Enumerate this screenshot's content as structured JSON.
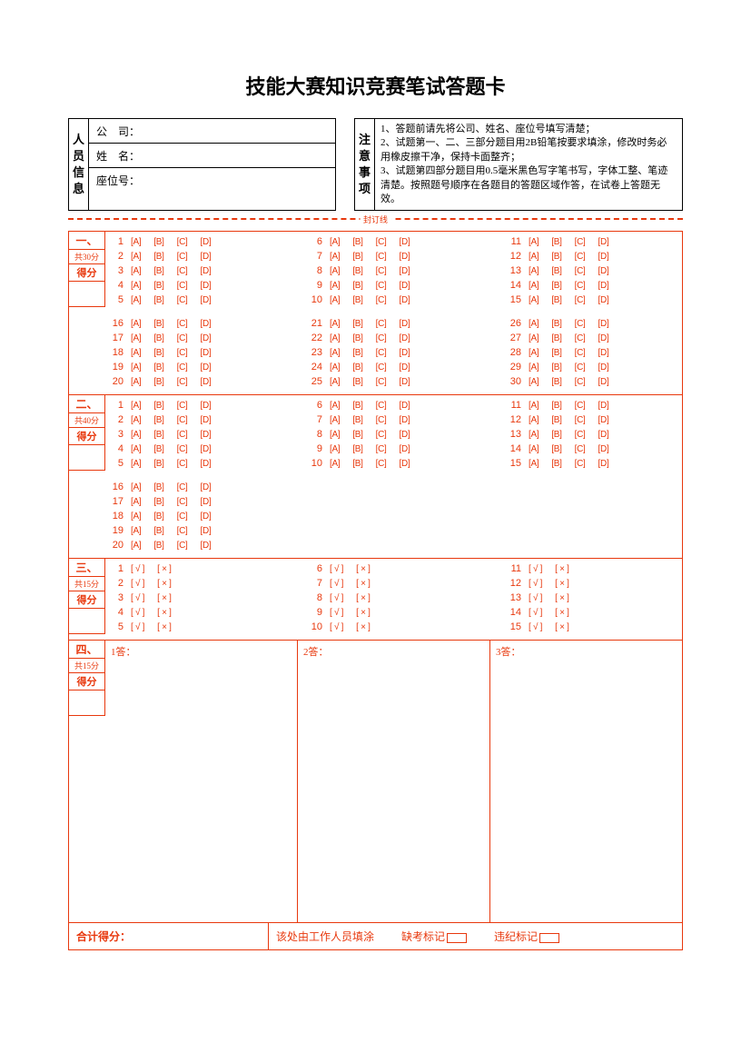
{
  "title": "技能大赛知识竞赛笔试答题卡",
  "info": {
    "label": "人员信息",
    "fields": [
      "公　司：",
      "姓　名：",
      "座位号："
    ]
  },
  "notice": {
    "label": "注意事项",
    "lines": [
      "1、答题前请先将公司、姓名、座位号填写清楚；",
      "2、试题第一、二、三部分题目用2B铅笔按要求填涂，修改时务必用橡皮擦干净，保持卡面整齐；",
      "3、试题第四部分题目用0.5毫米黑色写字笔书写，字体工整、笔迹清楚。按照题号顺序在各题目的答题区域作答，在试卷上答题无效。"
    ]
  },
  "seal": "封订线",
  "opt_labels": [
    "[A]",
    "[B]",
    "[C]",
    "[D]"
  ],
  "tf_labels": [
    "[ √ ]",
    "[ × ]"
  ],
  "sec1": {
    "tag": "一、",
    "pts": "共30分",
    "score": "得分",
    "blocks": [
      [
        [
          1,
          2,
          3,
          4,
          5
        ],
        [
          6,
          7,
          8,
          9,
          10
        ],
        [
          11,
          12,
          13,
          14,
          15
        ]
      ],
      [
        [
          16,
          17,
          18,
          19,
          20
        ],
        [
          21,
          22,
          23,
          24,
          25
        ],
        [
          26,
          27,
          28,
          29,
          30
        ]
      ]
    ]
  },
  "sec2": {
    "tag": "二、",
    "pts": "共40分",
    "score": "得分",
    "blocks": [
      [
        [
          1,
          2,
          3,
          4,
          5
        ],
        [
          6,
          7,
          8,
          9,
          10
        ],
        [
          11,
          12,
          13,
          14,
          15
        ]
      ],
      [
        [
          16,
          17,
          18,
          19,
          20
        ],
        [],
        []
      ]
    ]
  },
  "sec3": {
    "tag": "三、",
    "pts": "共15分",
    "score": "得分",
    "blocks": [
      [
        [
          1,
          2,
          3,
          4,
          5
        ],
        [
          6,
          7,
          8,
          9,
          10
        ],
        [
          11,
          12,
          13,
          14,
          15
        ]
      ]
    ]
  },
  "sec4": {
    "tag": "四、",
    "pts": "共15分",
    "score": "得分",
    "cells": [
      "1答：",
      "2答：",
      "3答："
    ]
  },
  "footer": {
    "total": "合计得分：",
    "staff": "该处由工作人员填涂",
    "absent": "缺考标记",
    "violation": "违纪标记"
  },
  "colors": {
    "accent": "#e8380d",
    "black": "#000000",
    "bg": "#ffffff"
  }
}
